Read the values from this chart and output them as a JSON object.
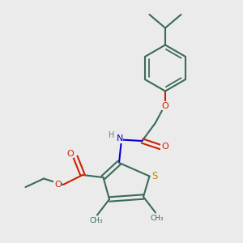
{
  "bg_color": "#ebebeb",
  "bond_color": "#3a6a5a",
  "s_color": "#b89000",
  "n_color": "#0000cc",
  "o_color": "#cc2200",
  "h_color": "#6a7a88",
  "lw": 1.5,
  "fs": 7.5,
  "figsize": [
    3.0,
    3.0
  ],
  "dpi": 100,
  "xlim": [
    0.0,
    10.0
  ],
  "ylim": [
    0.0,
    10.0
  ]
}
